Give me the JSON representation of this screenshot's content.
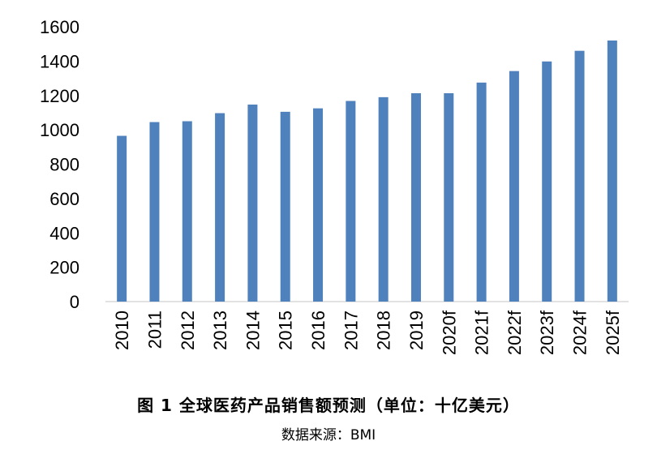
{
  "chart_data": {
    "type": "bar",
    "categories": [
      "2010",
      "2011",
      "2012",
      "2013",
      "2014",
      "2015",
      "2016",
      "2017",
      "2018",
      "2019",
      "2020f",
      "2021f",
      "2022f",
      "2023f",
      "2024f",
      "2025f"
    ],
    "values": [
      965,
      1045,
      1050,
      1097,
      1147,
      1105,
      1125,
      1168,
      1190,
      1213,
      1213,
      1275,
      1342,
      1398,
      1460,
      1520
    ],
    "ylim": [
      0,
      1600
    ],
    "yticks": [
      0,
      200,
      400,
      600,
      800,
      1000,
      1200,
      1400,
      1600
    ],
    "bar_color": "#4f81bd",
    "grid": false,
    "legend": "none"
  },
  "caption": {
    "title": "图 1 全球医药产品销售额预测（单位：十亿美元）",
    "source": "数据来源：BMI"
  }
}
